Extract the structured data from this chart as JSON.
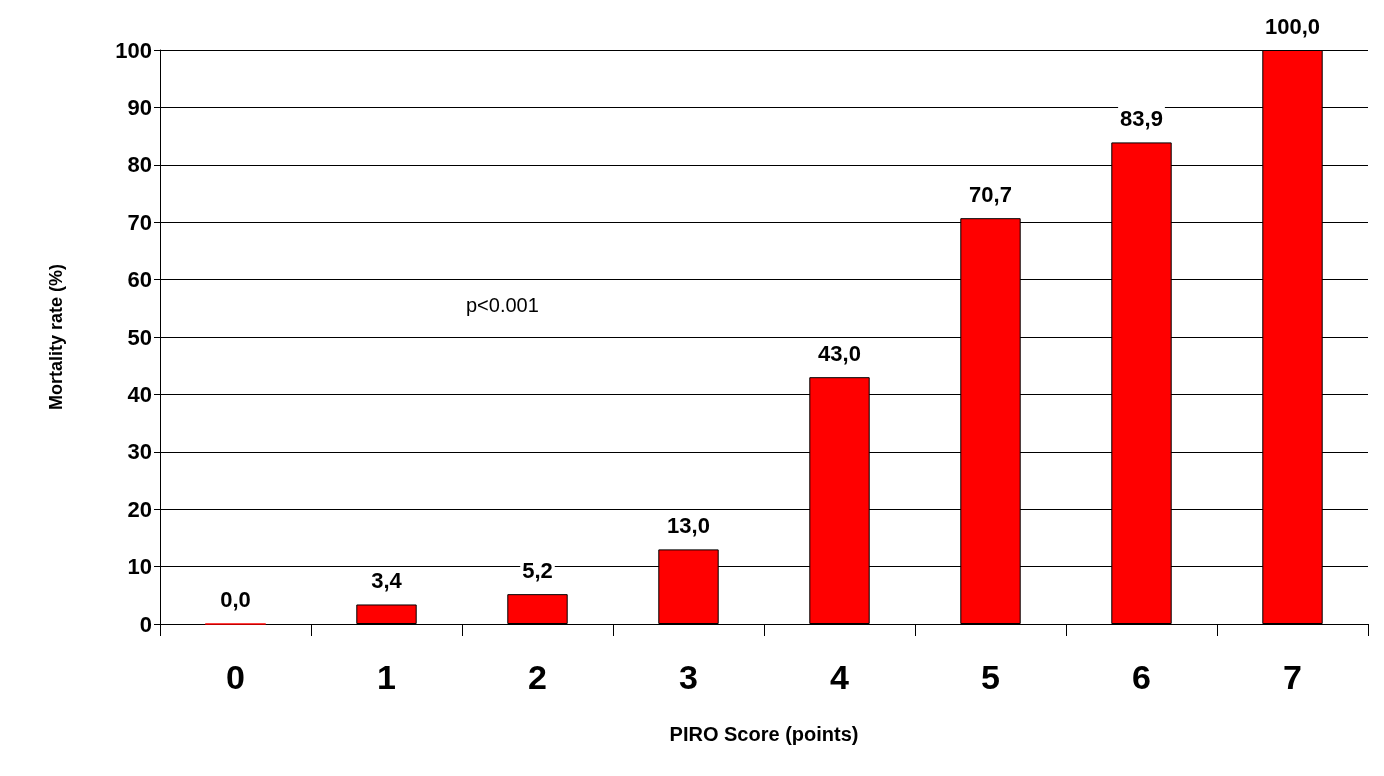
{
  "chart_data": {
    "type": "bar",
    "xlabel": "PIRO Score (points)",
    "ylabel": "Mortality rate (%)",
    "categories": [
      "0",
      "1",
      "2",
      "3",
      "4",
      "5",
      "6",
      "7"
    ],
    "values": [
      0,
      3.4,
      5.2,
      13,
      43,
      70.7,
      83.9,
      100
    ],
    "value_labels": [
      "0,0",
      "3,4",
      "5,2",
      "13,0",
      "43,0",
      "70,7",
      "83,9",
      "100,0"
    ],
    "color": "#ff0000",
    "ylim": [
      0,
      100
    ],
    "yticks": [
      0,
      10,
      20,
      30,
      40,
      50,
      60,
      70,
      80,
      90,
      100
    ],
    "grid": "y",
    "annotations": [
      "p<0.001"
    ]
  }
}
